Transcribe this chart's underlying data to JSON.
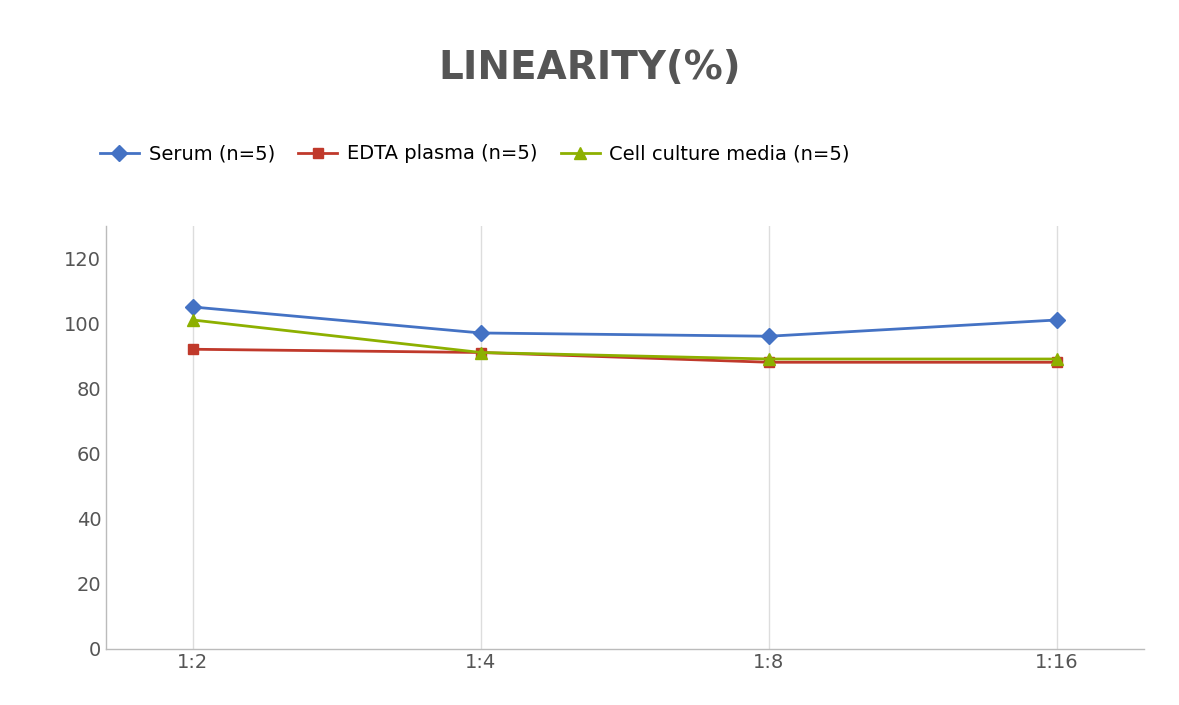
{
  "title": "LINEARITY(%)",
  "x_labels": [
    "1:2",
    "1:4",
    "1:8",
    "1:16"
  ],
  "x_positions": [
    0,
    1,
    2,
    3
  ],
  "series": [
    {
      "name": "Serum (n=5)",
      "values": [
        105,
        97,
        96,
        101
      ],
      "color": "#4472C4",
      "marker": "D",
      "markersize": 8,
      "linewidth": 2
    },
    {
      "name": "EDTA plasma (n=5)",
      "values": [
        92,
        91,
        88,
        88
      ],
      "color": "#C0392B",
      "marker": "s",
      "markersize": 7,
      "linewidth": 2
    },
    {
      "name": "Cell culture media (n=5)",
      "values": [
        101,
        91,
        89,
        89
      ],
      "color": "#8DB000",
      "marker": "^",
      "markersize": 8,
      "linewidth": 2
    }
  ],
  "ylim": [
    0,
    130
  ],
  "yticks": [
    0,
    20,
    40,
    60,
    80,
    100,
    120
  ],
  "grid_color": "#DDDDDD",
  "background_color": "#FFFFFF",
  "title_fontsize": 28,
  "title_color": "#555555",
  "legend_fontsize": 14,
  "tick_fontsize": 14,
  "tick_color": "#555555"
}
